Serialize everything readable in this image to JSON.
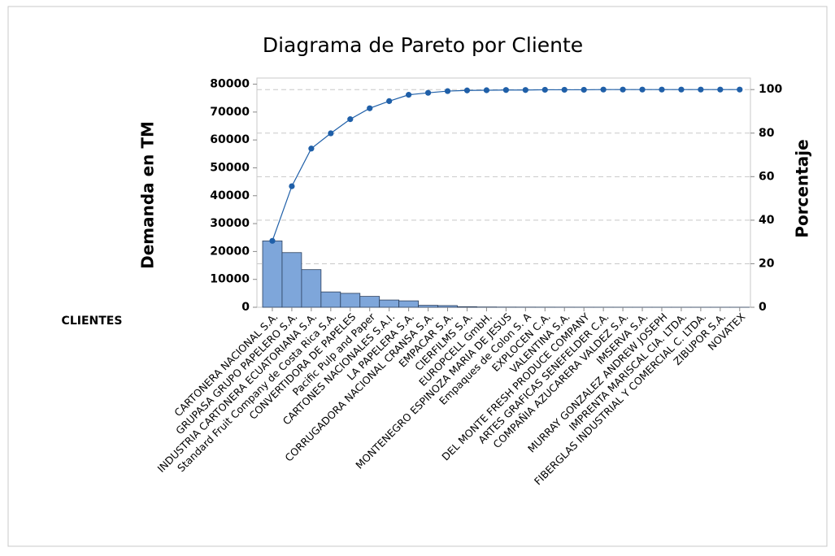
{
  "chart_data": {
    "type": "pareto",
    "title": "Diagrama de Pareto por Cliente",
    "ylabel": "Demanda en TM",
    "y2label": "Porcentaje",
    "xlabel": "CLIENTES",
    "categories": [
      "CARTONERA NACIONAL S.A.",
      "GRUPASA GRUPO PAPELERO S.A.",
      "INDUSTRIA CARTONERA ECUATORIANA S.A.",
      "Standard Fruit Company de Costa Rica S.A.",
      "CONVERTIDORA DE PAPELES",
      "Pacific Pulp and Paper",
      "CARTONES NACIONALES S.A.I.",
      "LA PAPELERA S.A.",
      "CORRUGADORA NACIONAL CRANSA S.A.",
      "EMPACAR S.A.",
      "CIERFILMS S.A.",
      "EUROPCELL GmbH.",
      "MONTENEGRO ESPINOZA MARIA DE JESUS",
      "Empaques de Colon S. A",
      "EXPLOCEN C.A.",
      "VALENTINA S.A.",
      "DEL MONTE FRESH PRODUCE COMPANY",
      "ARTES GRAFICAS SENEFELDER C.A.",
      "COMPAÑIA AZUCARERA VALDEZ S.A.",
      "IMSERVA S.A.",
      "MURRAY GONZALEZ ANDREW JOSEPH",
      "IMPRENTA MARISCAL CIA. LTDA.",
      "FIBERGLAS INDUSTRIAL Y COMERCIAL C. LTDA.",
      "ZIBUPOR S.A.",
      "NOVATEX"
    ],
    "series": [
      {
        "name": "Demanda en TM",
        "color": "#7ea6da",
        "values": [
          23800,
          19600,
          13500,
          5500,
          5000,
          3900,
          2600,
          2300,
          700,
          600,
          200,
          100,
          60,
          50,
          40,
          30,
          20,
          15,
          10,
          8,
          6,
          5,
          4,
          3,
          2
        ]
      },
      {
        "name": "Porcentaje",
        "color": "#1f5fa8",
        "axis": "y2",
        "values": [
          30.5,
          55.6,
          72.9,
          79.9,
          86.4,
          91.4,
          94.7,
          97.6,
          98.5,
          99.3,
          99.6,
          99.7,
          99.8,
          99.8,
          99.9,
          99.9,
          99.9,
          100,
          100,
          100,
          100,
          100,
          100,
          100,
          100
        ]
      }
    ],
    "ylim": [
      0,
      82200
    ],
    "yticks": [
      0,
      10000,
      20000,
      30000,
      40000,
      50000,
      60000,
      70000,
      80000
    ],
    "y2lim": [
      0,
      105.3
    ],
    "y2ticks": [
      0,
      20,
      40,
      60,
      80,
      100
    ],
    "grid": true
  }
}
